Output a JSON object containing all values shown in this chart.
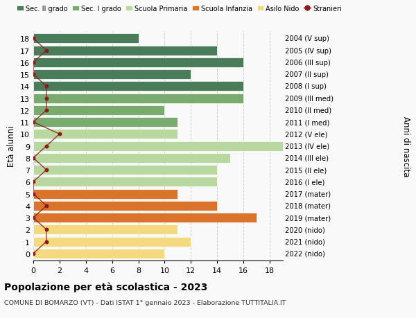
{
  "ages": [
    18,
    17,
    16,
    15,
    14,
    13,
    12,
    11,
    10,
    9,
    8,
    7,
    6,
    5,
    4,
    3,
    2,
    1,
    0
  ],
  "years_labels": [
    "2004 (V sup)",
    "2005 (IV sup)",
    "2006 (III sup)",
    "2007 (II sup)",
    "2008 (I sup)",
    "2009 (III med)",
    "2010 (II med)",
    "2011 (I med)",
    "2012 (V ele)",
    "2013 (IV ele)",
    "2014 (III ele)",
    "2015 (II ele)",
    "2016 (I ele)",
    "2017 (mater)",
    "2018 (mater)",
    "2019 (mater)",
    "2020 (nido)",
    "2021 (nido)",
    "2022 (nido)"
  ],
  "bar_values": [
    8,
    14,
    16,
    12,
    16,
    16,
    10,
    11,
    11,
    19,
    15,
    14,
    14,
    11,
    14,
    17,
    11,
    12,
    10
  ],
  "bar_colors": [
    "#4a7c59",
    "#4a7c59",
    "#4a7c59",
    "#4a7c59",
    "#4a7c59",
    "#7aab6e",
    "#7aab6e",
    "#7aab6e",
    "#b8d8a0",
    "#b8d8a0",
    "#b8d8a0",
    "#b8d8a0",
    "#b8d8a0",
    "#d9742a",
    "#d9742a",
    "#d9742a",
    "#f5d97e",
    "#f5d97e",
    "#f5d97e"
  ],
  "stranieri_values": [
    0,
    1,
    0,
    0,
    1,
    1,
    1,
    0,
    2,
    1,
    0,
    1,
    0,
    0,
    1,
    0,
    1,
    1,
    0
  ],
  "stranieri_color": "#8b1a1a",
  "title": "Popolazione per età scolastica - 2023",
  "subtitle": "COMUNE DI BOMARZO (VT) - Dati ISTAT 1° gennaio 2023 - Elaborazione TUTTITALIA.IT",
  "ylabel": "Età alunni",
  "right_label": "Anni di nascita",
  "xlim": [
    0,
    19
  ],
  "xticks": [
    0,
    2,
    4,
    6,
    8,
    10,
    12,
    14,
    16,
    18
  ],
  "legend_labels": [
    "Sec. II grado",
    "Sec. I grado",
    "Scuola Primaria",
    "Scuola Infanzia",
    "Asilo Nido",
    "Stranieri"
  ],
  "legend_colors": [
    "#4a7c59",
    "#7aab6e",
    "#b8d8a0",
    "#d9742a",
    "#f5d97e",
    "#8b1a1a"
  ],
  "bg_color": "#f9f9f9",
  "bar_height": 0.8,
  "grid_color": "#cccccc"
}
